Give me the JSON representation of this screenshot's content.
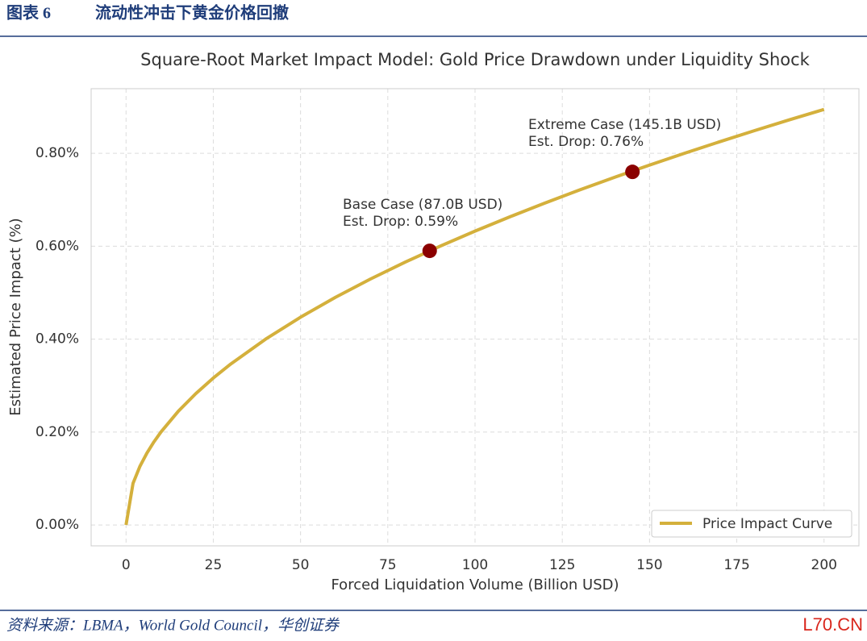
{
  "header": {
    "label": "图表 6",
    "title": "流动性冲击下黄金价格回撤"
  },
  "chart_data": {
    "type": "line",
    "title": "Square-Root Market Impact Model: Gold Price Drawdown under Liquidity Shock",
    "x_label": "Forced Liquidation Volume (Billion USD)",
    "y_label": "Estimated Price Impact (%)",
    "x": [
      0,
      2,
      4,
      6,
      8,
      10,
      15,
      20,
      25,
      30,
      40,
      50,
      60,
      70,
      80,
      90,
      100,
      110,
      120,
      130,
      140,
      150,
      160,
      170,
      180,
      190,
      200
    ],
    "series": [
      {
        "name": "Price Impact Curve",
        "color": "#d4b03c",
        "values": [
          0,
          0.0894,
          0.1265,
          0.1549,
          0.1789,
          0.2,
          0.2449,
          0.2828,
          0.3162,
          0.3464,
          0.4,
          0.4472,
          0.4899,
          0.5292,
          0.5657,
          0.6,
          0.6325,
          0.6633,
          0.6928,
          0.7211,
          0.7483,
          0.7746,
          0.8,
          0.8246,
          0.8485,
          0.8718,
          0.8944
        ]
      }
    ],
    "points": [
      {
        "x": 87.0,
        "y": 0.59,
        "lines": [
          "Base Case (87.0B USD)",
          "Est. Drop: 0.59%"
        ]
      },
      {
        "x": 145.1,
        "y": 0.76,
        "lines": [
          "Extreme Case (145.1B USD)",
          "Est. Drop: 0.76%"
        ]
      }
    ],
    "marker_color": "#8b0000",
    "xlim": [
      -10,
      210
    ],
    "xticks": [
      0,
      25,
      50,
      75,
      100,
      125,
      150,
      175,
      200
    ],
    "ylim": [
      -0.045,
      0.939
    ],
    "yticks": [
      {
        "value": 0,
        "label": "0.00%"
      },
      {
        "value": 0.2,
        "label": "0.20%"
      },
      {
        "value": 0.4,
        "label": "0.40%"
      },
      {
        "value": 0.6,
        "label": "0.60%"
      },
      {
        "value": 0.8,
        "label": "0.80%"
      }
    ],
    "grid": true,
    "legend": "lower right"
  },
  "footer": {
    "source": "资料来源：LBMA，World Gold Council，华创证券",
    "watermark": "L70.CN"
  }
}
